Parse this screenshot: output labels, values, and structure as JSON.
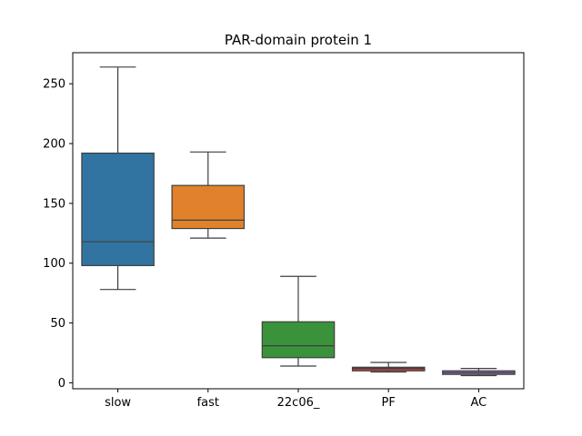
{
  "chart_data": {
    "type": "box",
    "title": "PAR-domain protein 1",
    "xlabel": "",
    "ylabel": "",
    "ylim": [
      -5,
      276
    ],
    "yticks": [
      0,
      50,
      100,
      150,
      200,
      250
    ],
    "grid": false,
    "categories": [
      "slow",
      "fast",
      "22c06_",
      "PF",
      "AC"
    ],
    "boxes": [
      {
        "category": "slow",
        "whisker_low": 78,
        "q1": 98,
        "median": 118,
        "q3": 192,
        "whisker_high": 264,
        "color": "#3274a1"
      },
      {
        "category": "fast",
        "whisker_low": 121,
        "q1": 129,
        "median": 136,
        "q3": 165,
        "whisker_high": 193,
        "color": "#e1812c"
      },
      {
        "category": "22c06_",
        "whisker_low": 14,
        "q1": 21,
        "median": 31,
        "q3": 51,
        "whisker_high": 89,
        "color": "#3a923a"
      },
      {
        "category": "PF",
        "whisker_low": 9,
        "q1": 10,
        "median": 12,
        "q3": 13,
        "whisker_high": 17,
        "color": "#c03d3e"
      },
      {
        "category": "AC",
        "whisker_low": 6,
        "q1": 7,
        "median": 8.5,
        "q3": 10,
        "whisker_high": 12,
        "color": "#9372b2"
      }
    ]
  }
}
